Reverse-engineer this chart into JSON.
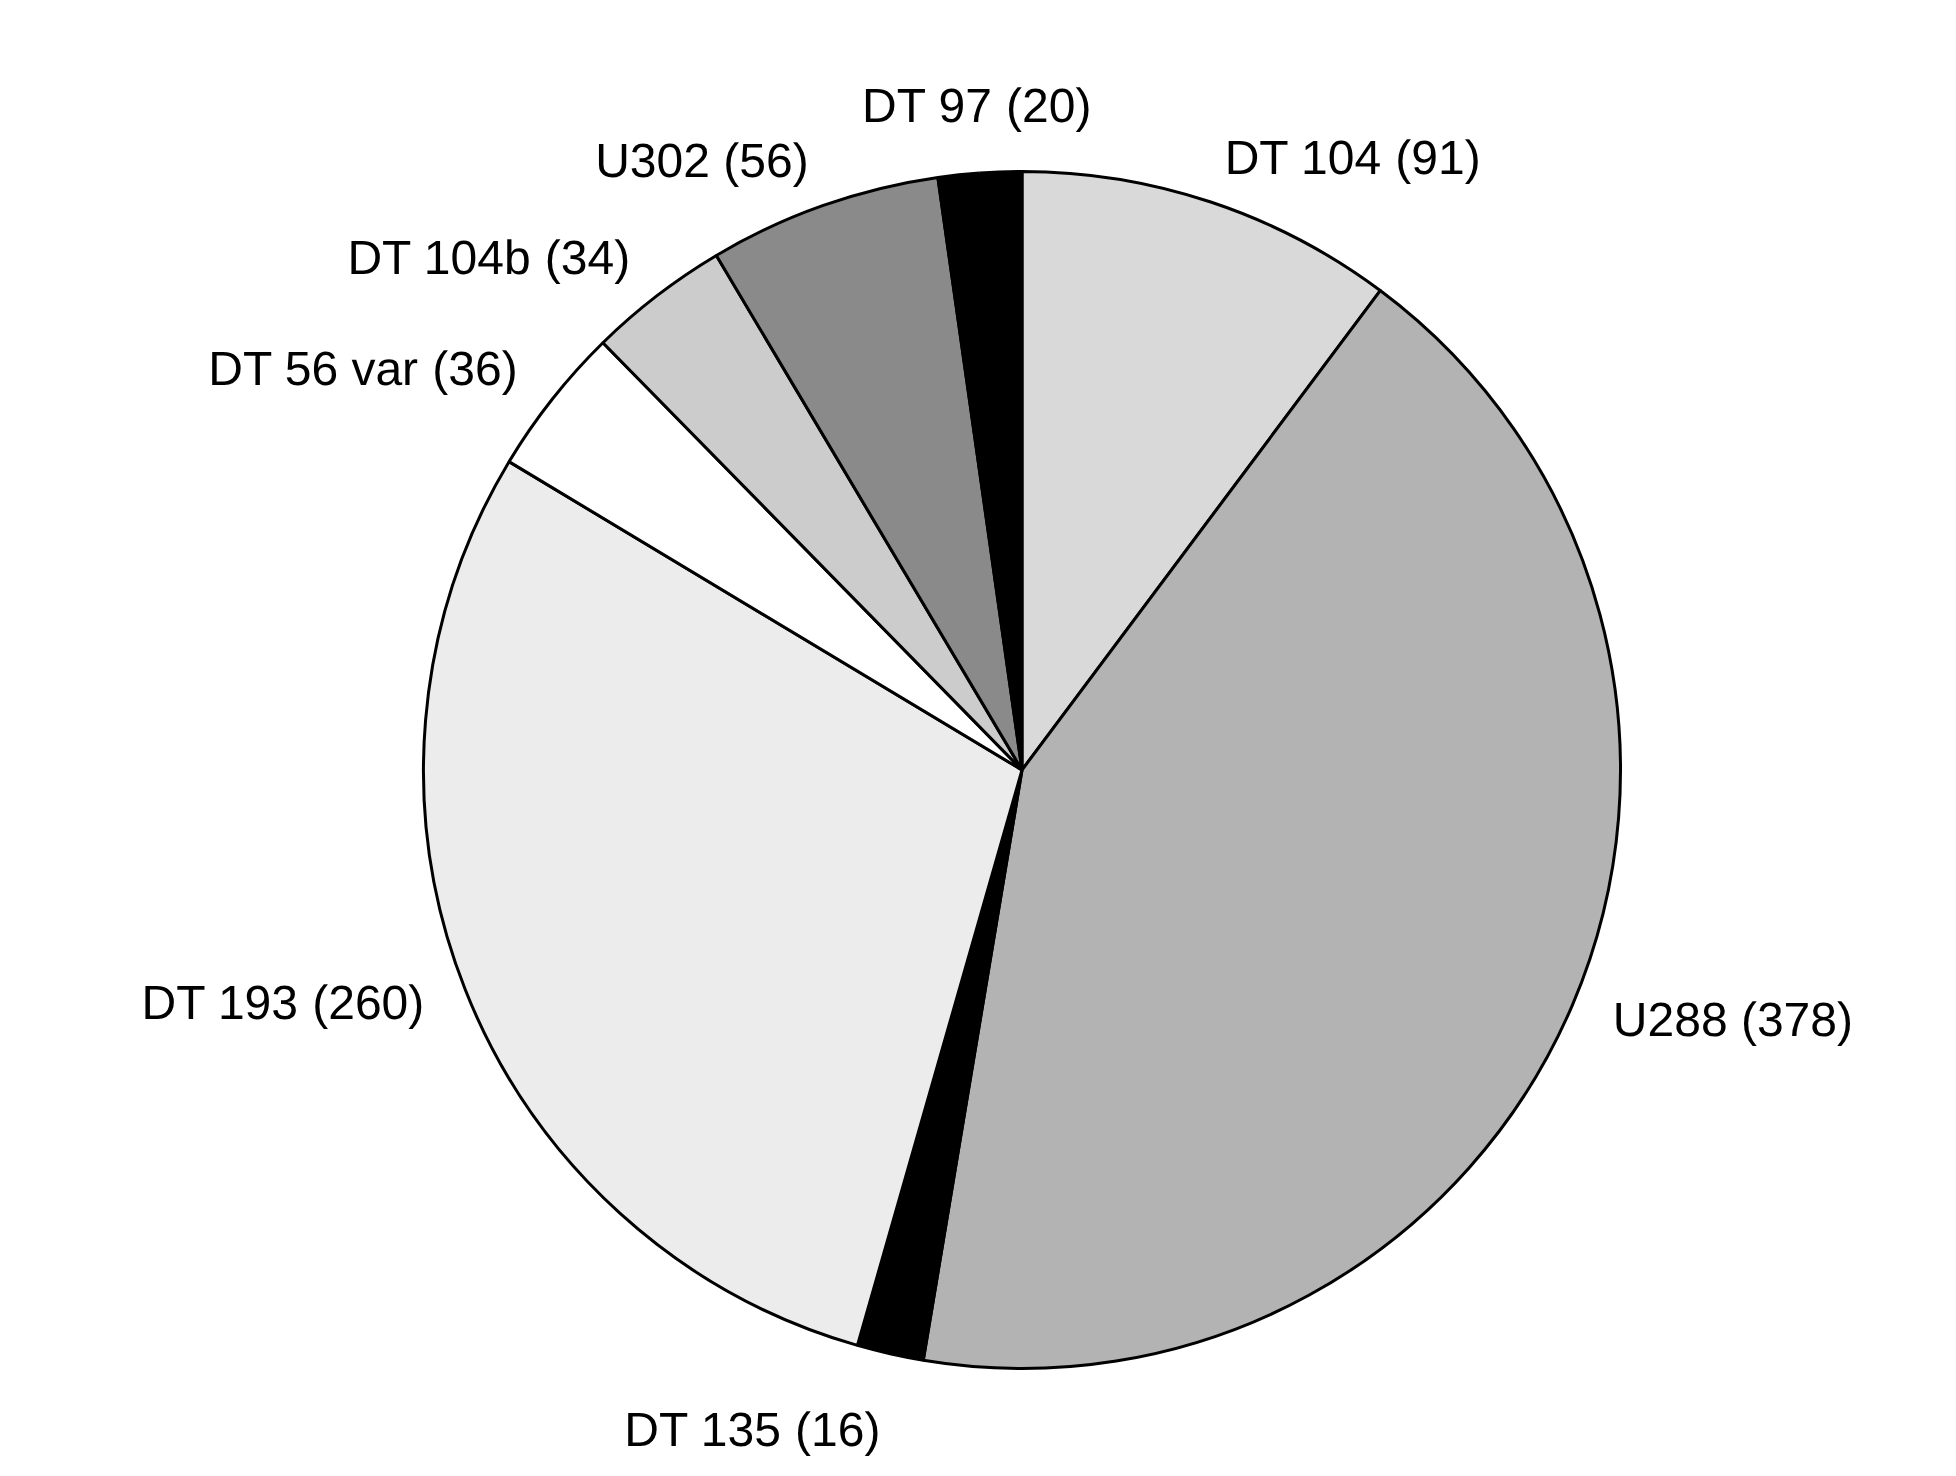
{
  "chart_data": {
    "type": "pie",
    "categories": [
      "DT 104",
      "U288",
      "DT 135",
      "DT 193",
      "DT 56 var",
      "DT 104b",
      "U302",
      "DT 97"
    ],
    "values": [
      91,
      378,
      16,
      260,
      36,
      34,
      56,
      20
    ],
    "colors": [
      "#d9d9d9",
      "#b3b3b3",
      "#000000",
      "#ececec",
      "#ffffff",
      "#cccccc",
      "#8a8a8a",
      "#000000"
    ],
    "value_labels": [
      "(91)",
      "(378)",
      "(16)",
      "(260)",
      "(36)",
      "(34)",
      "(56)",
      "(20)"
    ],
    "legend": false
  }
}
